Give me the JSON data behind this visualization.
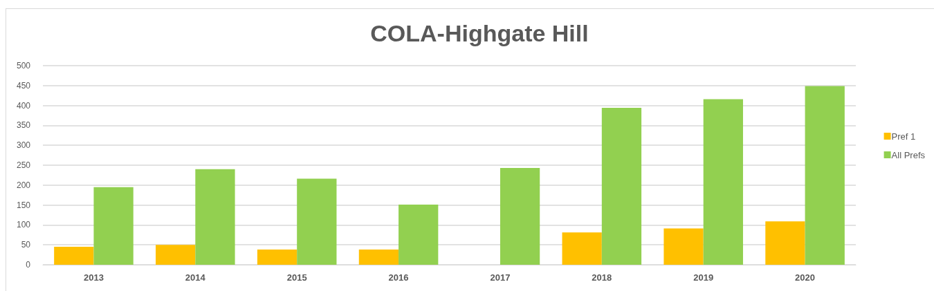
{
  "chart_data": {
    "type": "bar",
    "title": "COLA-Highgate Hill",
    "categories": [
      "2013",
      "2014",
      "2015",
      "2016",
      "2017",
      "2018",
      "2019",
      "2020"
    ],
    "series": [
      {
        "name": "Pref 1",
        "color": "#ffc000",
        "values": [
          45,
          50,
          38,
          38,
          null,
          81,
          91,
          109
        ]
      },
      {
        "name": "All Prefs",
        "color": "#92d050",
        "values": [
          195,
          240,
          216,
          151,
          243,
          394,
          416,
          449
        ]
      }
    ],
    "ylim": [
      0,
      500
    ],
    "yticks": [
      0,
      50,
      100,
      150,
      200,
      250,
      300,
      350,
      400,
      450,
      500
    ],
    "grid": "y",
    "legend": "right"
  }
}
